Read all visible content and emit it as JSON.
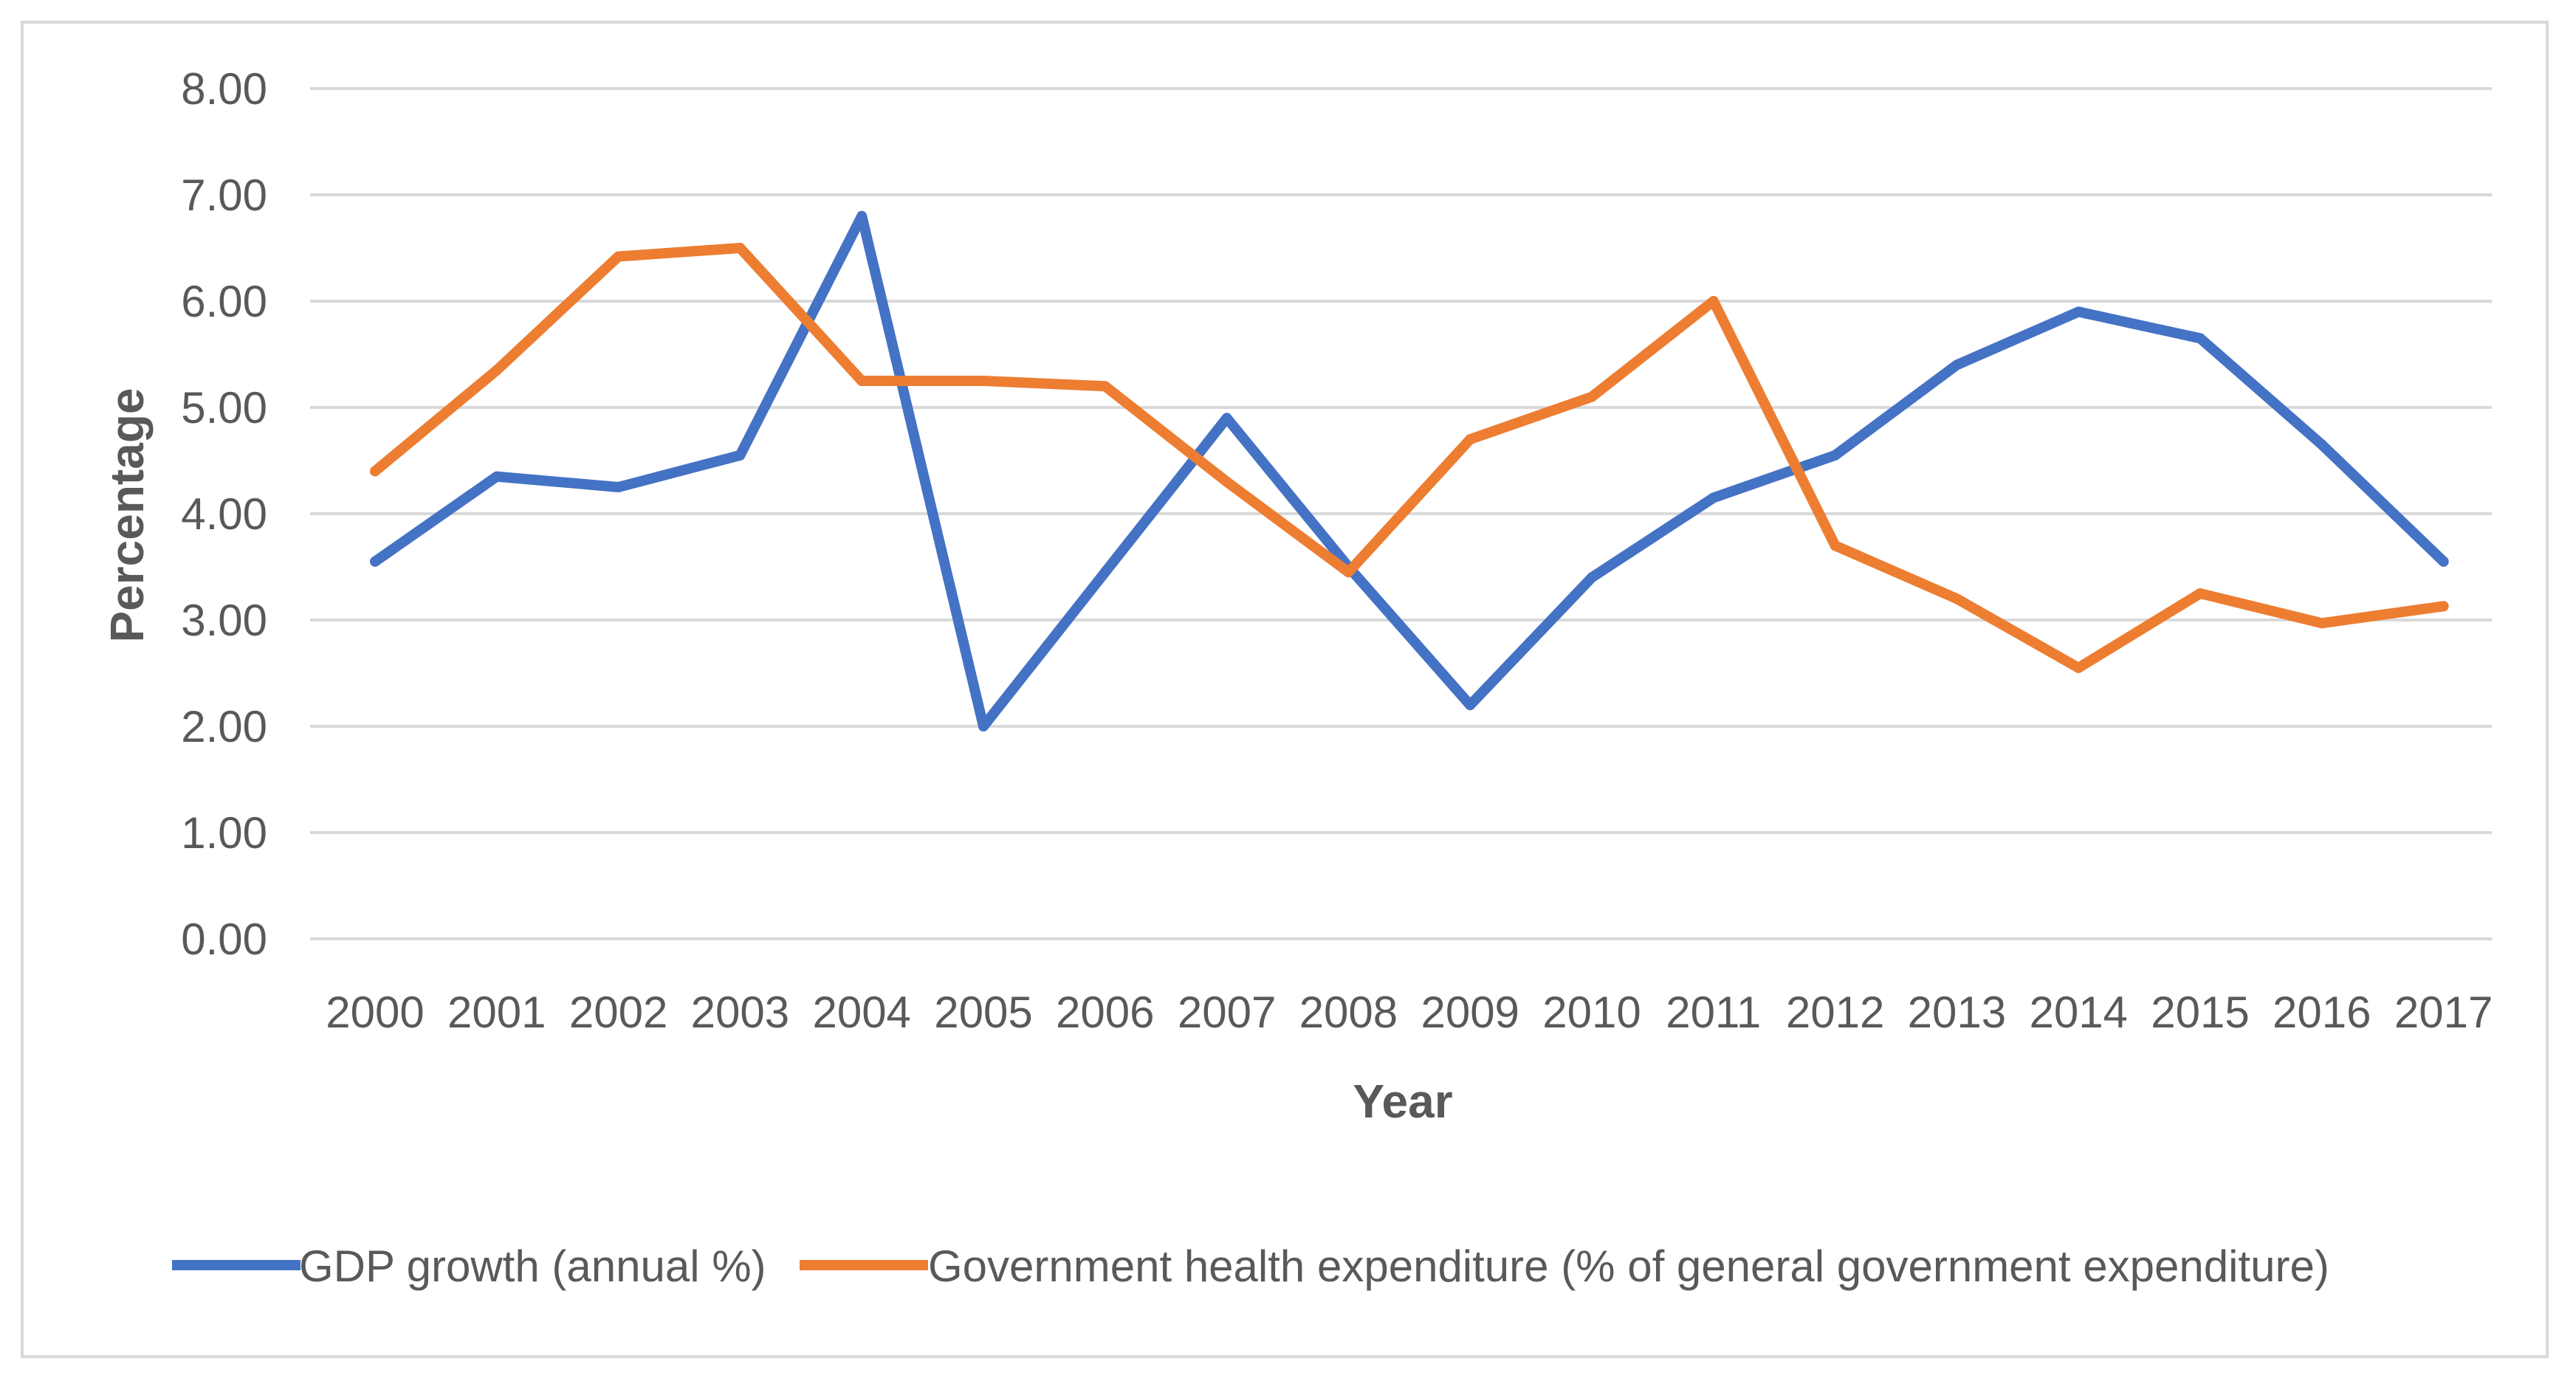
{
  "chart_data": {
    "type": "line",
    "title": "",
    "xlabel": "Year",
    "ylabel": "Percentage",
    "ylim": [
      0,
      8
    ],
    "yticks": [
      "0.00",
      "1.00",
      "2.00",
      "3.00",
      "4.00",
      "5.00",
      "6.00",
      "7.00",
      "8.00"
    ],
    "grid": true,
    "legend_position": "bottom",
    "categories": [
      "2000",
      "2001",
      "2002",
      "2003",
      "2004",
      "2005",
      "2006",
      "2007",
      "2008",
      "2009",
      "2010",
      "2011",
      "2012",
      "2013",
      "2014",
      "2015",
      "2016",
      "2017"
    ],
    "series": [
      {
        "name": "GDP growth (annual %)",
        "color": "#4472c4",
        "values": [
          3.55,
          4.35,
          4.25,
          4.55,
          6.8,
          2.0,
          3.45,
          4.9,
          3.5,
          2.2,
          3.4,
          4.15,
          4.55,
          5.4,
          5.9,
          5.65,
          4.65,
          3.55
        ]
      },
      {
        "name": "Government health expenditure (% of general government expenditure)",
        "color": "#ed7d31",
        "values": [
          4.4,
          5.35,
          6.42,
          6.5,
          5.25,
          5.25,
          5.2,
          4.3,
          3.45,
          4.7,
          5.1,
          6.0,
          3.7,
          3.2,
          2.55,
          3.25,
          2.97,
          3.13
        ]
      }
    ]
  }
}
